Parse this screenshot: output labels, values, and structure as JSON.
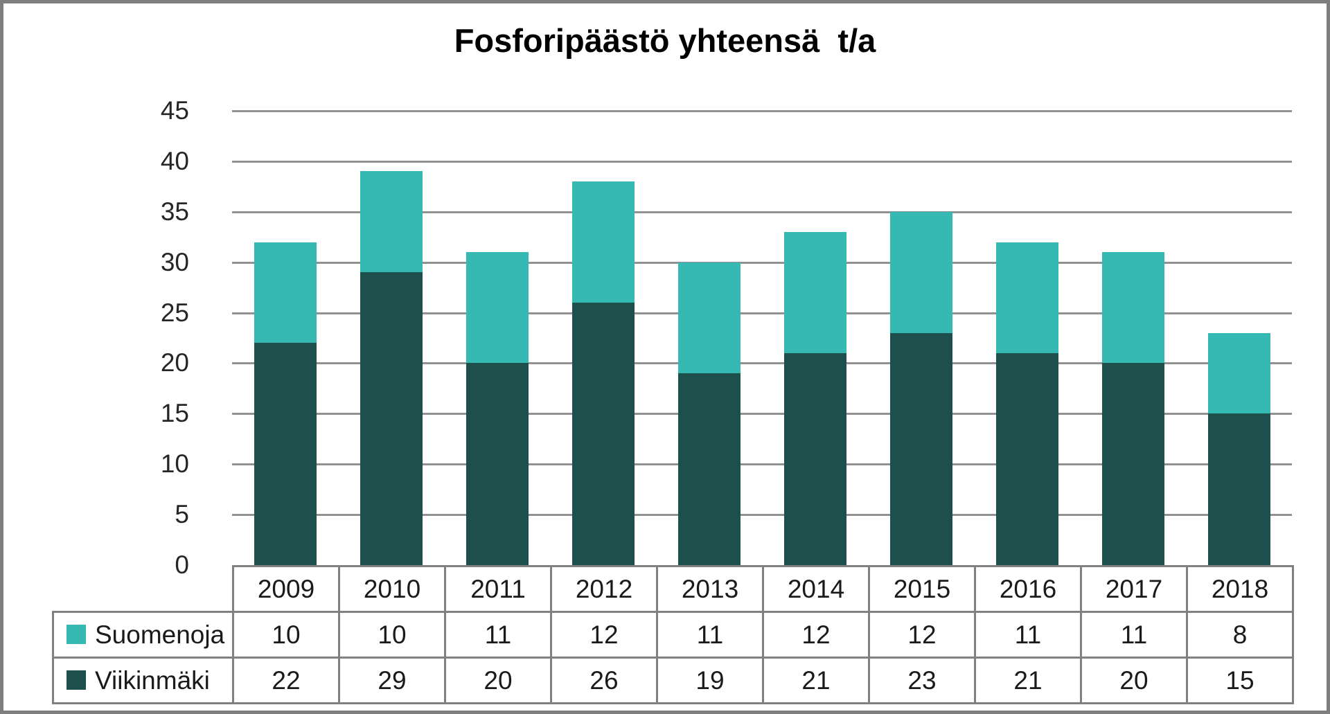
{
  "window": {
    "background": "#ffffff",
    "frame_border_color": "#7e7e7e"
  },
  "chart_data": {
    "type": "bar",
    "stacked": true,
    "title": "Fosforipäästö yhteensä  t/a",
    "xlabel": "",
    "ylabel": "",
    "categories": [
      "2009",
      "2010",
      "2011",
      "2012",
      "2013",
      "2014",
      "2015",
      "2016",
      "2017",
      "2018"
    ],
    "series": [
      {
        "name": "Suomenoja",
        "color": "#35b9b2",
        "values": [
          10,
          10,
          11,
          12,
          11,
          12,
          12,
          11,
          11,
          8
        ]
      },
      {
        "name": "Viikinmäki",
        "color": "#1d4f4c",
        "values": [
          22,
          29,
          20,
          26,
          19,
          21,
          23,
          21,
          20,
          15
        ]
      }
    ],
    "stack_order_bottom_to_top": [
      "Viikinmäki",
      "Suomenoja"
    ],
    "totals": [
      32,
      39,
      31,
      38,
      30,
      33,
      35,
      32,
      31,
      23
    ],
    "ylim": [
      0,
      45
    ],
    "yticks": [
      0,
      5,
      10,
      15,
      20,
      25,
      30,
      35,
      40,
      45
    ],
    "grid": "horizontal",
    "gridline_color": "#919191",
    "axis_text_color": "#262626",
    "table_text_color": "#1a1a1a",
    "table_border_color": "#808080",
    "legend_position": "left column of data table below chart"
  }
}
